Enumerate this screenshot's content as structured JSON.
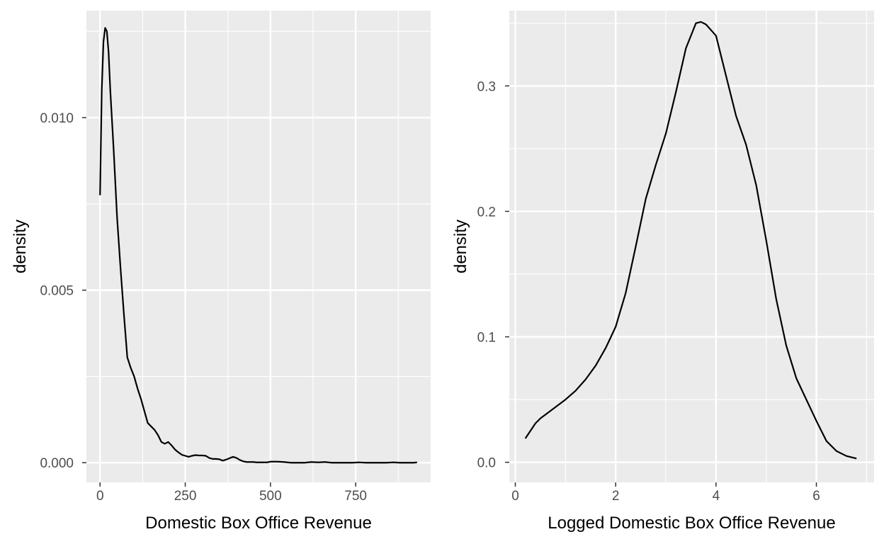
{
  "chart_data": [
    {
      "type": "area",
      "panel": "left",
      "xlabel": "Domestic Box Office Revenue",
      "ylabel": "density",
      "xlim": [
        -40,
        970
      ],
      "ylim": [
        -0.00057,
        0.0131
      ],
      "x_ticks": [
        0,
        250,
        500,
        750
      ],
      "x_tick_labels": [
        "0",
        "250",
        "500",
        "750"
      ],
      "y_ticks": [
        0.0,
        0.005,
        0.01
      ],
      "y_tick_labels": [
        "0.000",
        "0.005",
        "0.010"
      ],
      "grid": true,
      "series": [
        {
          "x": [
            0,
            5,
            10,
            15,
            20,
            25,
            30,
            40,
            50,
            60,
            70,
            80,
            90,
            100,
            110,
            120,
            130,
            140,
            150,
            160,
            170,
            180,
            190,
            200,
            210,
            220,
            230,
            240,
            250,
            260,
            270,
            280,
            290,
            300,
            310,
            320,
            330,
            340,
            350,
            360,
            370,
            380,
            390,
            400,
            410,
            420,
            430,
            440,
            450,
            460,
            470,
            480,
            490,
            500,
            520,
            540,
            560,
            580,
            600,
            620,
            640,
            660,
            680,
            700,
            720,
            740,
            760,
            780,
            800,
            820,
            840,
            860,
            880,
            900,
            920,
            930
          ],
          "y": [
            0.00775,
            0.0108,
            0.0122,
            0.0126,
            0.0125,
            0.0119,
            0.0108,
            0.00905,
            0.0071,
            0.00565,
            0.0043,
            0.00305,
            0.00275,
            0.0025,
            0.00215,
            0.00185,
            0.0015,
            0.00115,
            0.00105,
            0.00095,
            0.0008,
            0.0006,
            0.00055,
            0.0006,
            0.0005,
            0.00038,
            0.0003,
            0.00023,
            0.0002,
            0.00017,
            0.0002,
            0.00022,
            0.00021,
            0.00021,
            0.0002,
            0.00014,
            0.00011,
            0.00011,
            0.0001,
            6e-05,
            9e-05,
            0.00013,
            0.00017,
            0.00014,
            8e-05,
            4e-05,
            2e-05,
            2e-05,
            2e-05,
            1e-05,
            1e-05,
            1e-05,
            1e-05,
            3e-05,
            3e-05,
            2e-05,
            0.0,
            0.0,
            0.0,
            2e-05,
            1e-05,
            2e-05,
            0.0,
            0.0,
            0.0,
            0.0,
            1e-05,
            0.0,
            0.0,
            0.0,
            0.0,
            1e-05,
            0.0,
            0.0,
            0.0,
            1e-05
          ]
        }
      ]
    },
    {
      "type": "area",
      "panel": "right",
      "xlabel": "Logged Domestic Box Office Revenue",
      "ylabel": "density",
      "xlim": [
        -0.12,
        7.15
      ],
      "ylim": [
        -0.016,
        0.36
      ],
      "x_ticks": [
        0,
        2,
        4,
        6
      ],
      "x_tick_labels": [
        "0",
        "2",
        "4",
        "6"
      ],
      "y_ticks": [
        0.0,
        0.1,
        0.2,
        0.3
      ],
      "y_tick_labels": [
        "0.0",
        "0.1",
        "0.2",
        "0.3"
      ],
      "grid": true,
      "series": [
        {
          "x": [
            0.2,
            0.3,
            0.4,
            0.5,
            0.6,
            0.8,
            1.0,
            1.2,
            1.4,
            1.6,
            1.8,
            2.0,
            2.2,
            2.4,
            2.6,
            2.8,
            3.0,
            3.2,
            3.4,
            3.6,
            3.7,
            3.8,
            4.0,
            4.2,
            4.4,
            4.6,
            4.8,
            5.0,
            5.2,
            5.4,
            5.6,
            5.8,
            6.0,
            6.2,
            6.4,
            6.6,
            6.8
          ],
          "y": [
            0.019,
            0.025,
            0.031,
            0.035,
            0.038,
            0.044,
            0.05,
            0.057,
            0.066,
            0.077,
            0.091,
            0.108,
            0.135,
            0.172,
            0.21,
            0.237,
            0.262,
            0.295,
            0.33,
            0.35,
            0.351,
            0.349,
            0.34,
            0.308,
            0.276,
            0.253,
            0.221,
            0.177,
            0.13,
            0.093,
            0.067,
            0.05,
            0.033,
            0.017,
            0.009,
            0.005,
            0.003
          ]
        }
      ]
    }
  ]
}
